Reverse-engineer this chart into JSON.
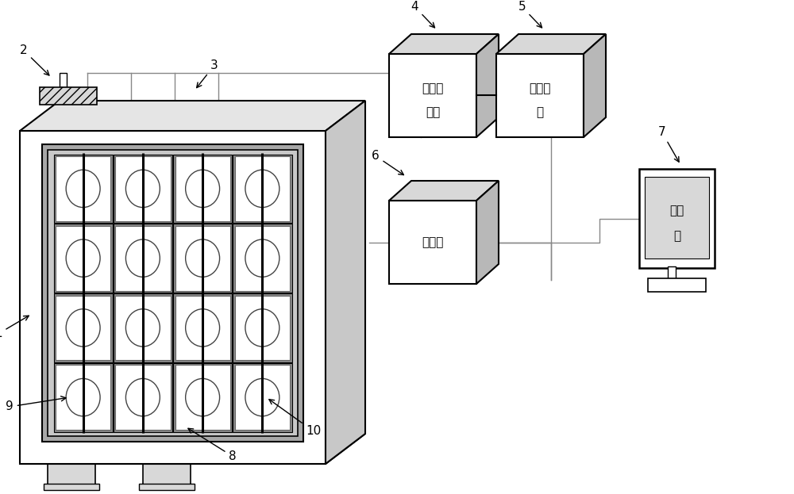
{
  "bg_color": "#ffffff",
  "lc": "#000000",
  "gray_light": "#e0e0e0",
  "gray_medium": "#c0c0c0",
  "gray_dark": "#a0a0a0",
  "gray_panel": "#cccccc",
  "gray_side": "#b0b0b0",
  "gray_top": "#d8d8d8",
  "box4_text1": "数据采",
  "box4_text2": "集筱",
  "box5_text1": "数据转",
  "box5_text2": "化",
  "box6_text": "控制器",
  "box7_text1": "工控",
  "box7_text2": "机"
}
